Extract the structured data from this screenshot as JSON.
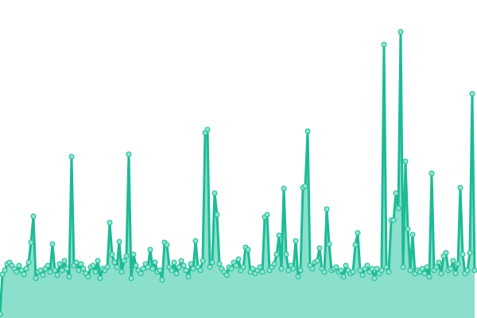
{
  "chart_data": {
    "type": "area",
    "title": "",
    "xlabel": "",
    "ylabel": "",
    "ylim": [
      0,
      400
    ],
    "grid": false,
    "legend": "none",
    "colors": {
      "line": "#1dbb95",
      "fill": "#8ae0cd",
      "marker_fill": "#8fe3cf",
      "marker_stroke": "#1dbb95"
    },
    "values": [
      5,
      55,
      60,
      68,
      70,
      66,
      62,
      58,
      66,
      60,
      55,
      62,
      70,
      95,
      128,
      50,
      58,
      60,
      54,
      62,
      66,
      58,
      93,
      60,
      54,
      68,
      60,
      72,
      62,
      52,
      203,
      66,
      70,
      60,
      68,
      62,
      56,
      52,
      64,
      66,
      58,
      72,
      50,
      62,
      60,
      64,
      120,
      80,
      70,
      64,
      96,
      58,
      72,
      78,
      206,
      50,
      80,
      66,
      60,
      56,
      62,
      68,
      64,
      86,
      62,
      70,
      58,
      60,
      48,
      95,
      92,
      64,
      60,
      70,
      56,
      64,
      72,
      66,
      60,
      52,
      68,
      62,
      97,
      64,
      60,
      72,
      233,
      237,
      64,
      70,
      157,
      130,
      68,
      62,
      58,
      54,
      64,
      62,
      70,
      66,
      74,
      60,
      64,
      89,
      86,
      58,
      62,
      56,
      60,
      64,
      58,
      127,
      130,
      60,
      64,
      68,
      80,
      104,
      62,
      163,
      80,
      60,
      66,
      62,
      97,
      52,
      60,
      164,
      166,
      235,
      66,
      62,
      70,
      72,
      88,
      62,
      58,
      137,
      93,
      60,
      62,
      64,
      58,
      60,
      52,
      66,
      60,
      56,
      58,
      92,
      107,
      60,
      54,
      62,
      66,
      58,
      62,
      50,
      62,
      56,
      60,
      344,
      64,
      58,
      123,
      123,
      157,
      138,
      360,
      64,
      197,
      112,
      60,
      105,
      56,
      60,
      58,
      62,
      56,
      64,
      52,
      182,
      60,
      64,
      70,
      56,
      78,
      82,
      60,
      62,
      72,
      56,
      68,
      164,
      80,
      56,
      60,
      82,
      282,
      60
    ]
  }
}
